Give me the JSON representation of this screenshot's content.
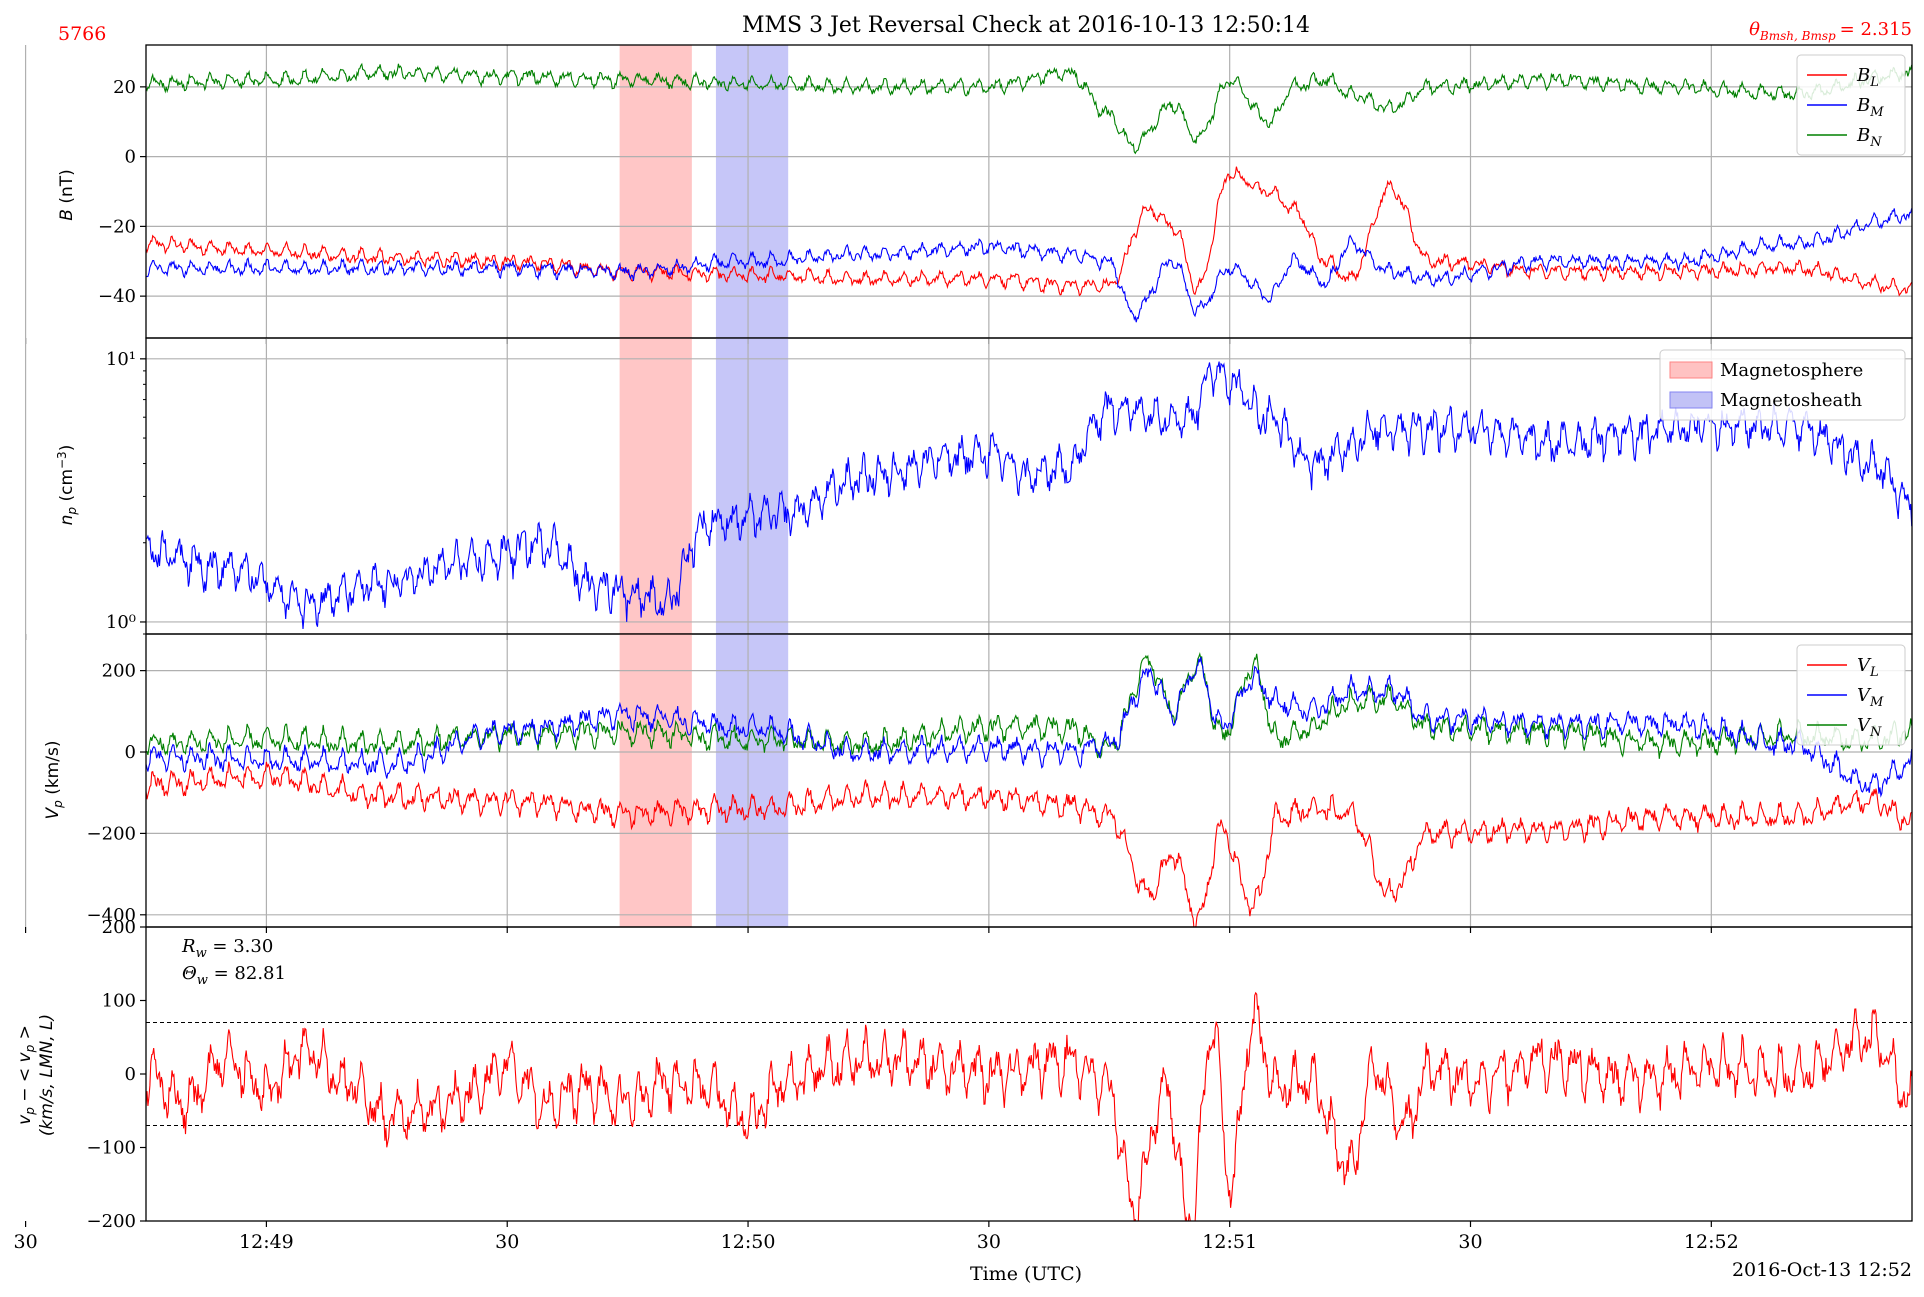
{
  "header": {
    "id_label": "5766",
    "title": "MMS 3 Jet Reversal Check at 2016-10-13 12:50:14",
    "angle_label": "θ",
    "angle_sub": "Bmsh, Bmsp",
    "angle_value": "= 2.315"
  },
  "x_axis": {
    "label": "Time (UTC)",
    "date_label": "2016-Oct-13 12:52",
    "range": [
      "12:48:45",
      "12:52:25"
    ],
    "ticks": [
      {
        "t": "12:48:30",
        "label": "30"
      },
      {
        "t": "12:49:00",
        "label": "12:49"
      },
      {
        "t": "12:49:30",
        "label": "30"
      },
      {
        "t": "12:50:00",
        "label": "12:50"
      },
      {
        "t": "12:50:30",
        "label": "30"
      },
      {
        "t": "12:51:00",
        "label": "12:51"
      },
      {
        "t": "12:51:30",
        "label": "30"
      },
      {
        "t": "12:52:00",
        "label": "12:52"
      }
    ]
  },
  "shaded_regions": [
    {
      "name": "Magnetosphere",
      "start": "12:49:44",
      "end": "12:49:53",
      "color": "#ffb3b3"
    },
    {
      "name": "Magnetosheath",
      "start": "12:49:56",
      "end": "12:50:05",
      "color": "#b3b3f5"
    }
  ],
  "colors": {
    "L": "#ff0000",
    "M": "#0000ff",
    "N": "#008000",
    "grid": "#b0b0b0",
    "red_text": "#ff0000"
  },
  "chart_data": [
    {
      "type": "line",
      "panel": "magnetic_field",
      "ylabel": "B (nT)",
      "ylim": [
        -52,
        32
      ],
      "yticks": [
        20,
        0,
        -20,
        -40
      ],
      "legend": {
        "placement": "top-right",
        "entries": [
          "B_L",
          "B_M",
          "B_N"
        ]
      },
      "series": [
        {
          "name": "B_L",
          "color": "#ff0000",
          "x": [
            "12:48:45",
            "12:49:00",
            "12:49:15",
            "12:49:30",
            "12:49:45",
            "12:50:00",
            "12:50:15",
            "12:50:30",
            "12:50:40",
            "12:50:45",
            "12:50:50",
            "12:50:53",
            "12:50:56",
            "12:51:00",
            "12:51:05",
            "12:51:08",
            "12:51:12",
            "12:51:15",
            "12:51:20",
            "12:51:25",
            "12:51:40",
            "12:51:55",
            "12:52:10",
            "12:52:25"
          ],
          "y": [
            -25,
            -27,
            -29,
            -30,
            -33,
            -34,
            -35,
            -35,
            -37,
            -37,
            -15,
            -20,
            -38,
            -5,
            -10,
            -15,
            -30,
            -35,
            -9,
            -30,
            -33,
            -33,
            -32,
            -38
          ]
        },
        {
          "name": "B_M",
          "color": "#0000ff",
          "x": [
            "12:48:45",
            "12:49:00",
            "12:49:15",
            "12:49:30",
            "12:49:45",
            "12:50:00",
            "12:50:15",
            "12:50:30",
            "12:50:40",
            "12:50:45",
            "12:50:48",
            "12:50:53",
            "12:50:56",
            "12:51:00",
            "12:51:05",
            "12:51:08",
            "12:51:12",
            "12:51:15",
            "12:51:20",
            "12:51:25",
            "12:51:40",
            "12:51:55",
            "12:52:10",
            "12:52:25"
          ],
          "y": [
            -32,
            -32,
            -32,
            -32,
            -33,
            -30,
            -28,
            -26,
            -28,
            -30,
            -45,
            -30,
            -44,
            -32,
            -40,
            -30,
            -36,
            -25,
            -33,
            -35,
            -30,
            -30,
            -25,
            -17
          ]
        },
        {
          "name": "B_N",
          "color": "#008000",
          "x": [
            "12:48:45",
            "12:49:00",
            "12:49:15",
            "12:49:30",
            "12:49:45",
            "12:50:00",
            "12:50:15",
            "12:50:30",
            "12:50:40",
            "12:50:45",
            "12:50:48",
            "12:50:53",
            "12:50:56",
            "12:51:00",
            "12:51:05",
            "12:51:08",
            "12:51:12",
            "12:51:15",
            "12:51:20",
            "12:51:25",
            "12:51:40",
            "12:51:55",
            "12:52:10",
            "12:52:25"
          ],
          "y": [
            21,
            22,
            24,
            23,
            22,
            21,
            20,
            20,
            24,
            12,
            3,
            15,
            5,
            22,
            10,
            20,
            22,
            18,
            14,
            20,
            22,
            20,
            18,
            24
          ]
        }
      ]
    },
    {
      "type": "line",
      "panel": "density",
      "ylabel": "n_p (cm^-3)",
      "yscale": "log",
      "ylim": [
        0.9,
        12
      ],
      "yticks": [
        1,
        10
      ],
      "ytick_labels": [
        "10⁰",
        "10¹"
      ],
      "legend": {
        "placement": "top-right",
        "entries": [
          "Magnetosphere",
          "Magnetosheath"
        ]
      },
      "series": [
        {
          "name": "n_p",
          "color": "#0000ff",
          "x": [
            "12:48:45",
            "12:48:55",
            "12:49:05",
            "12:49:15",
            "12:49:25",
            "12:49:35",
            "12:49:40",
            "12:49:50",
            "12:49:55",
            "12:50:05",
            "12:50:15",
            "12:50:25",
            "12:50:30",
            "12:50:35",
            "12:50:40",
            "12:50:45",
            "12:50:55",
            "12:50:58",
            "12:51:05",
            "12:51:10",
            "12:51:20",
            "12:51:30",
            "12:51:40",
            "12:51:50",
            "12:52:00",
            "12:52:10",
            "12:52:20",
            "12:52:25"
          ],
          "y": [
            1.9,
            1.6,
            1.2,
            1.4,
            1.7,
            2.0,
            1.4,
            1.2,
            2.4,
            2.6,
            3.6,
            4.2,
            4.4,
            3.6,
            3.9,
            6.5,
            6.0,
            9.0,
            6.0,
            4.0,
            5.5,
            5.5,
            4.8,
            5.2,
            5.6,
            5.6,
            4.0,
            2.8
          ]
        }
      ]
    },
    {
      "type": "line",
      "panel": "velocity",
      "ylabel": "V_p (km/s)",
      "ylim": [
        -430,
        290
      ],
      "yticks": [
        200,
        0,
        -200,
        -400
      ],
      "legend": {
        "placement": "top-right",
        "entries": [
          "V_L",
          "V_M",
          "V_N"
        ]
      },
      "series": [
        {
          "name": "V_L",
          "color": "#ff0000",
          "x": [
            "12:48:45",
            "12:49:00",
            "12:49:15",
            "12:49:30",
            "12:49:45",
            "12:50:00",
            "12:50:15",
            "12:50:30",
            "12:50:40",
            "12:50:45",
            "12:50:50",
            "12:50:53",
            "12:50:56",
            "12:50:59",
            "12:51:03",
            "12:51:06",
            "12:51:10",
            "12:51:15",
            "12:51:20",
            "12:51:25",
            "12:51:40",
            "12:51:55",
            "12:52:10",
            "12:52:20",
            "12:52:25"
          ],
          "y": [
            -80,
            -60,
            -110,
            -120,
            -150,
            -140,
            -110,
            -110,
            -130,
            -160,
            -350,
            -250,
            -410,
            -190,
            -380,
            -160,
            -140,
            -150,
            -350,
            -200,
            -190,
            -160,
            -160,
            -120,
            -170
          ]
        },
        {
          "name": "V_M",
          "color": "#0000ff",
          "x": [
            "12:48:45",
            "12:49:00",
            "12:49:15",
            "12:49:30",
            "12:49:45",
            "12:50:00",
            "12:50:15",
            "12:50:30",
            "12:50:40",
            "12:50:45",
            "12:50:50",
            "12:50:53",
            "12:50:56",
            "12:50:59",
            "12:51:03",
            "12:51:06",
            "12:51:10",
            "12:51:15",
            "12:51:20",
            "12:51:25",
            "12:51:40",
            "12:51:55",
            "12:52:10",
            "12:52:20",
            "12:52:25"
          ],
          "y": [
            -10,
            -20,
            -30,
            50,
            90,
            60,
            0,
            10,
            0,
            20,
            190,
            100,
            210,
            60,
            180,
            120,
            100,
            150,
            150,
            80,
            70,
            70,
            20,
            -80,
            -30
          ]
        },
        {
          "name": "V_N",
          "color": "#008000",
          "x": [
            "12:48:45",
            "12:49:00",
            "12:49:15",
            "12:49:30",
            "12:49:45",
            "12:50:00",
            "12:50:15",
            "12:50:30",
            "12:50:40",
            "12:50:45",
            "12:50:50",
            "12:50:53",
            "12:50:56",
            "12:50:59",
            "12:51:03",
            "12:51:06",
            "12:51:10",
            "12:51:15",
            "12:51:20",
            "12:51:25",
            "12:51:40",
            "12:51:55",
            "12:52:10",
            "12:52:20",
            "12:52:25"
          ],
          "y": [
            20,
            30,
            20,
            40,
            50,
            30,
            20,
            60,
            60,
            10,
            220,
            100,
            220,
            40,
            210,
            30,
            60,
            120,
            130,
            60,
            50,
            20,
            40,
            30,
            50
          ]
        }
      ]
    },
    {
      "type": "line",
      "panel": "velocity_residual",
      "ylabel": "v_p - <v_p> (km/s, LMN, L)",
      "ylim": [
        -200,
        200
      ],
      "yticks": [
        200,
        100,
        0,
        -100,
        -200
      ],
      "annotations": [
        "R_w = 3.30",
        "Θ_w = 82.81"
      ],
      "reference_lines": [
        70,
        -70
      ],
      "series": [
        {
          "name": "v_p - <v_p>",
          "color": "#ff0000",
          "x": [
            "12:48:45",
            "12:48:50",
            "12:48:55",
            "12:49:00",
            "12:49:05",
            "12:49:10",
            "12:49:15",
            "12:49:20",
            "12:49:25",
            "12:49:30",
            "12:49:35",
            "12:49:40",
            "12:49:45",
            "12:49:50",
            "12:49:55",
            "12:50:00",
            "12:50:05",
            "12:50:10",
            "12:50:15",
            "12:50:20",
            "12:50:25",
            "12:50:30",
            "12:50:35",
            "12:50:40",
            "12:50:45",
            "12:50:48",
            "12:50:52",
            "12:50:55",
            "12:50:58",
            "12:51:00",
            "12:51:03",
            "12:51:06",
            "12:51:10",
            "12:51:15",
            "12:51:18",
            "12:51:22",
            "12:51:25",
            "12:51:30",
            "12:51:40",
            "12:51:50",
            "12:52:00",
            "12:52:10",
            "12:52:20",
            "12:52:25"
          ],
          "y": [
            0,
            -40,
            20,
            -20,
            30,
            -10,
            -60,
            -50,
            -30,
            10,
            -40,
            -20,
            -40,
            -10,
            -20,
            -60,
            -10,
            10,
            20,
            20,
            10,
            0,
            10,
            20,
            -20,
            -180,
            -20,
            -200,
            60,
            -150,
            70,
            -20,
            -10,
            -130,
            10,
            -70,
            10,
            -10,
            20,
            -10,
            10,
            0,
            50,
            -30
          ]
        }
      ]
    }
  ]
}
